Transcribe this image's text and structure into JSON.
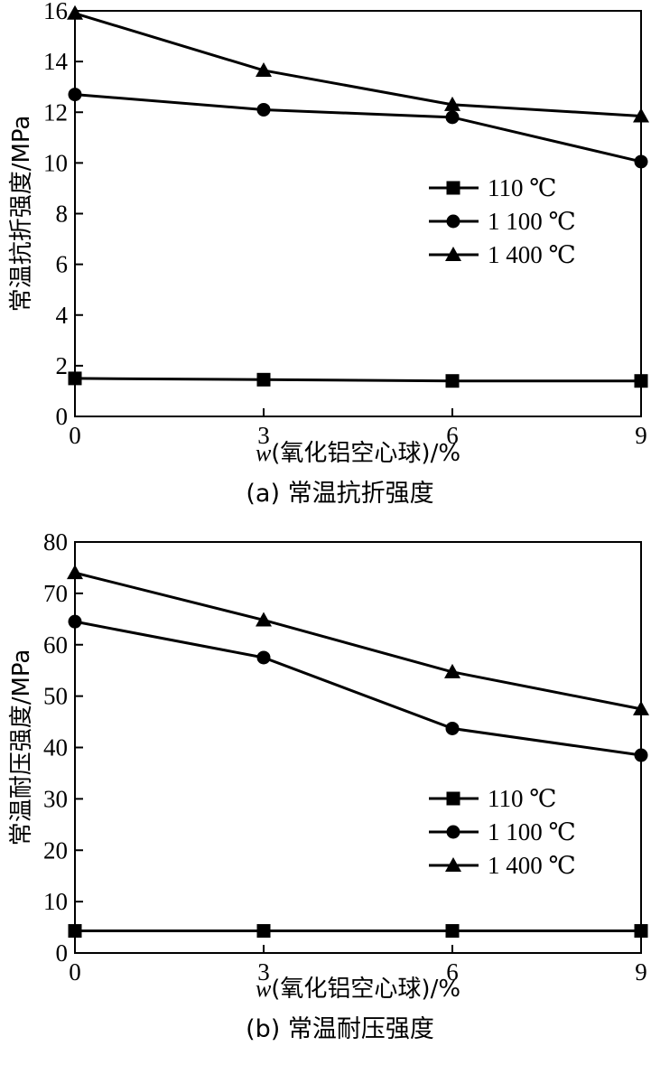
{
  "chart_data": [
    {
      "type": "line",
      "caption": "(a) 常温抗折强度",
      "xlabel": "w(氧化铝空心球)/%",
      "ylabel": "常温抗折强度/MPa",
      "x": [
        0,
        3,
        6,
        9
      ],
      "xticks": [
        0,
        3,
        6,
        9
      ],
      "yticks": [
        0,
        2,
        4,
        6,
        8,
        10,
        12,
        14,
        16
      ],
      "xlim": [
        0,
        9
      ],
      "ylim": [
        0,
        16
      ],
      "grid": false,
      "legend_position": "center-right",
      "series": [
        {
          "name": "110 ℃",
          "marker": "square",
          "values": [
            1.5,
            1.45,
            1.4,
            1.4
          ]
        },
        {
          "name": "1 100 ℃",
          "marker": "circle",
          "values": [
            12.7,
            12.1,
            11.8,
            10.05
          ]
        },
        {
          "name": "1 400 ℃",
          "marker": "triangle",
          "values": [
            15.9,
            13.65,
            12.3,
            11.85
          ]
        }
      ]
    },
    {
      "type": "line",
      "caption": "(b) 常温耐压强度",
      "xlabel": "w(氧化铝空心球)/%",
      "ylabel": "常温耐压强度/MPa",
      "x": [
        0,
        3,
        6,
        9
      ],
      "xticks": [
        0,
        3,
        6,
        9
      ],
      "yticks": [
        0,
        10,
        20,
        30,
        40,
        50,
        60,
        70,
        80
      ],
      "xlim": [
        0,
        9
      ],
      "ylim": [
        0,
        80
      ],
      "grid": false,
      "legend_position": "center-right",
      "series": [
        {
          "name": "110 ℃",
          "marker": "square",
          "values": [
            4.3,
            4.3,
            4.3,
            4.3
          ]
        },
        {
          "name": "1 100 ℃",
          "marker": "circle",
          "values": [
            64.5,
            57.5,
            43.7,
            38.5
          ]
        },
        {
          "name": "1 400 ℃",
          "marker": "triangle",
          "values": [
            74.0,
            64.8,
            54.7,
            47.5
          ]
        }
      ]
    }
  ]
}
